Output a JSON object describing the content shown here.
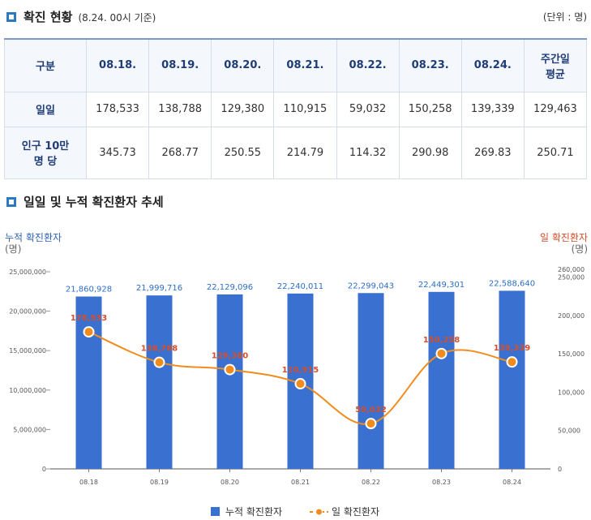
{
  "header": {
    "title": "확진 현황",
    "note": "(8.24. 00시 기준)",
    "unit": "(단위 : 명)"
  },
  "table": {
    "columns": [
      "구분",
      "08.18.",
      "08.19.",
      "08.20.",
      "08.21.",
      "08.22.",
      "08.23.",
      "08.24.",
      "주간일\n평균"
    ],
    "rows": [
      {
        "label": "일일",
        "values": [
          "178,533",
          "138,788",
          "129,380",
          "110,915",
          "59,032",
          "150,258",
          "139,339",
          "129,463"
        ]
      },
      {
        "label": "인구 10만\n명 당",
        "values": [
          "345.73",
          "268.77",
          "250.55",
          "214.79",
          "114.32",
          "290.98",
          "269.83",
          "250.71"
        ]
      }
    ]
  },
  "section2": {
    "title": "일일 및 누적 확진환자 추세"
  },
  "chart_data": {
    "type": "bar",
    "categories": [
      "08.18",
      "08.19",
      "08.20",
      "08.21",
      "08.22",
      "08.23",
      "08.24"
    ],
    "series": [
      {
        "name": "누적 확진환자",
        "type": "bar",
        "axis": "left",
        "color": "#3a70d0",
        "values": [
          21860928,
          21999716,
          22129096,
          22240011,
          22299043,
          22449301,
          22588640
        ],
        "labels": [
          "21,860,928",
          "21,999,716",
          "22,129,096",
          "22,240,011",
          "22,299,043",
          "22,449,301",
          "22,588,640"
        ]
      },
      {
        "name": "일 확진환자",
        "type": "line",
        "axis": "right",
        "color": "#f08c1e",
        "values": [
          178533,
          138788,
          129380,
          110915,
          59032,
          150258,
          139339
        ],
        "labels": [
          "178,533",
          "138,788",
          "129,380",
          "110,915",
          "59,032",
          "150,258",
          "139,339"
        ]
      }
    ],
    "left_axis": {
      "title": "누적 확진환자",
      "unit": "(명)",
      "ticks": [
        "25,000,000",
        "20,000,000",
        "15,000,000",
        "10,000,000",
        "5,000,000",
        "0"
      ],
      "tick_values": [
        25000000,
        20000000,
        15000000,
        10000000,
        5000000,
        0
      ],
      "ylim": [
        0,
        25000000
      ]
    },
    "right_axis": {
      "title": "일 확진환자",
      "unit": "(명)",
      "ticks": [
        "260,000",
        "250,000",
        "200,000",
        "150,000",
        "100,000",
        "50,000",
        "0"
      ],
      "tick_values": [
        260000,
        250000,
        200000,
        150000,
        100000,
        50000,
        0
      ],
      "ylim": [
        0,
        260000
      ]
    },
    "legend": {
      "placement": "bottom",
      "items": [
        "누적 확진환자",
        "일 확진환자"
      ]
    },
    "grid": false
  }
}
